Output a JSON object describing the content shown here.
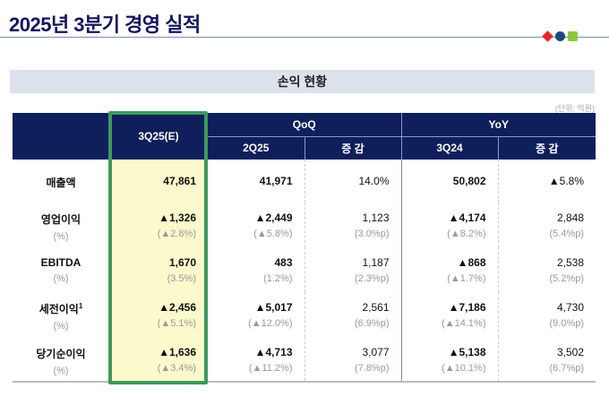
{
  "title": "2025년 3분기 경영 실적",
  "section_title": "손익 현황",
  "unit": "(단위: 억원)",
  "headers": {
    "current": "3Q25(E)",
    "qoq": "QoQ",
    "yoy": "YoY",
    "prev_q": "2Q25",
    "change": "증 감",
    "prev_y": "3Q24"
  },
  "rows": [
    {
      "label": "매출액",
      "sub": "",
      "cur": "47,861",
      "cur_p": "",
      "q": "41,971",
      "q_p": "",
      "qc": "14.0%",
      "qc_p": "",
      "y": "50,802",
      "y_p": "",
      "yc": "▲5.8%",
      "yc_p": ""
    },
    {
      "label": "영업이익",
      "sup": "",
      "sub": "(%)",
      "cur": "▲1,326",
      "cur_p": "(▲2.8%)",
      "q": "▲2,449",
      "q_p": "(▲5.8%)",
      "qc": "1,123",
      "qc_p": "(3.0%p)",
      "y": "▲4,174",
      "y_p": "(▲8.2%)",
      "yc": "2,848",
      "yc_p": "(5.4%p)"
    },
    {
      "label": "EBITDA",
      "sup": "",
      "sub": "(%)",
      "cur": "1,670",
      "cur_p": "(3.5%)",
      "q": "483",
      "q_p": "(1.2%)",
      "qc": "1,187",
      "qc_p": "(2.3%p)",
      "y": "▲868",
      "y_p": "(▲1.7%)",
      "yc": "2,538",
      "yc_p": "(5.2%p)"
    },
    {
      "label": "세전이익",
      "sup": "1",
      "sub": "(%)",
      "cur": "▲2,456",
      "cur_p": "(▲5.1%)",
      "q": "▲5,017",
      "q_p": "(▲12.0%)",
      "qc": "2,561",
      "qc_p": "(6.9%p)",
      "y": "▲7,186",
      "y_p": "(▲14.1%)",
      "yc": "4,730",
      "yc_p": "(9.0%p)"
    },
    {
      "label": "당기순이익",
      "sup": "",
      "sub": "(%)",
      "cur": "▲1,636",
      "cur_p": "(▲3.4%)",
      "q": "▲4,713",
      "q_p": "(▲11.2%)",
      "qc": "3,077",
      "qc_p": "(7.8%p)",
      "y": "▲5,138",
      "y_p": "(▲10.1%)",
      "yc": "3,502",
      "yc_p": "(6.7%p)"
    }
  ]
}
